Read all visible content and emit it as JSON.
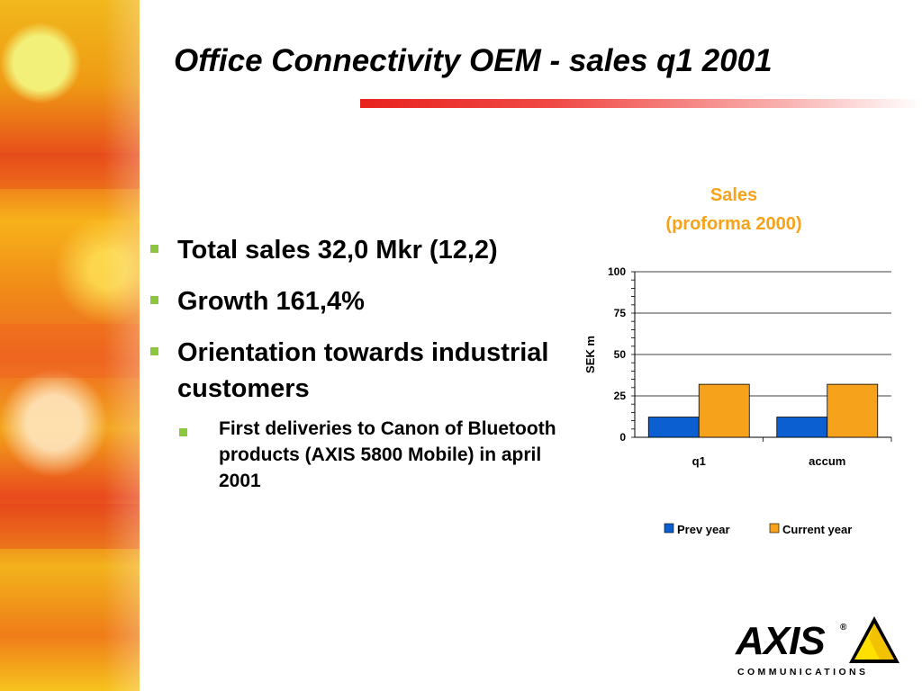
{
  "slide": {
    "title": "Office Connectivity OEM - sales q1 2001"
  },
  "bullets": [
    {
      "text": "Total sales 32,0 Mkr (12,2)"
    },
    {
      "text": "Growth 161,4%"
    },
    {
      "text": "Orientation towards industrial customers",
      "sub": [
        {
          "text": "First deliveries to Canon of Bluetooth products (AXIS 5800 Mobile) in april 2001"
        }
      ]
    }
  ],
  "chart_data": {
    "type": "bar",
    "title": "Sales",
    "subtitle": "(proforma 2000)",
    "ylabel": "SEK m",
    "xlabel": "",
    "categories": [
      "q1",
      "accum"
    ],
    "series": [
      {
        "name": "Prev year",
        "values": [
          12.2,
          12.2
        ],
        "color": "#0b5fd1"
      },
      {
        "name": "Current year",
        "values": [
          32.0,
          32.0
        ],
        "color": "#f7a21b"
      }
    ],
    "ylim": [
      0,
      100
    ],
    "yticks": [
      0,
      25,
      50,
      75,
      100
    ],
    "grid": true,
    "legend": "bottom",
    "title_color": "#f7a21b"
  },
  "logo": {
    "name": "AXIS",
    "tagline": "COMMUNICATIONS",
    "registered": "®"
  },
  "colors": {
    "accent_red": "#e8231e",
    "bullet_green": "#8cc63f",
    "sub_bullet_red": "#c81e1e"
  }
}
